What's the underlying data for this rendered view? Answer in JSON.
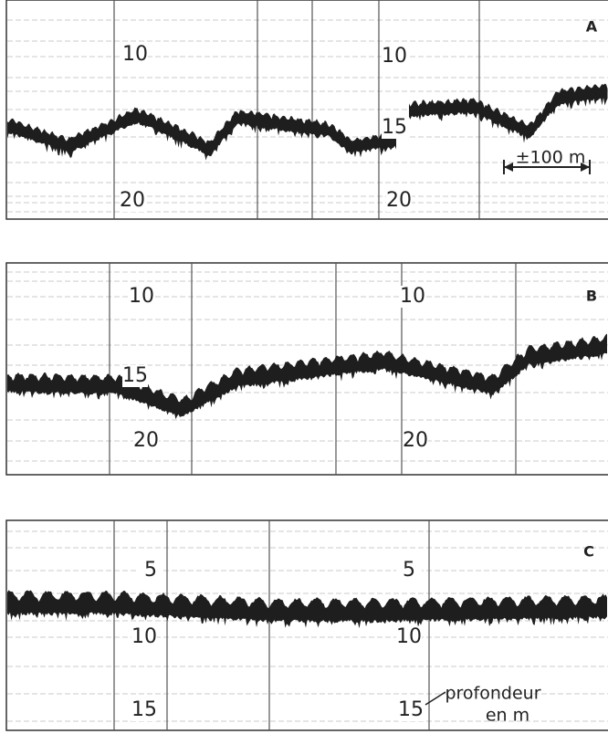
{
  "panels": [
    {
      "label": "A",
      "depth_labels": [
        "10",
        "10",
        "15",
        "20",
        "20"
      ],
      "scale_label": "±100 m"
    },
    {
      "label": "B",
      "depth_labels": [
        "10",
        "10",
        "15",
        "20",
        "20"
      ]
    },
    {
      "label": "C",
      "depth_labels": [
        "5",
        "5",
        "10",
        "10",
        "15",
        "15"
      ],
      "axis_caption": [
        "profondeur",
        "en m"
      ]
    }
  ]
}
